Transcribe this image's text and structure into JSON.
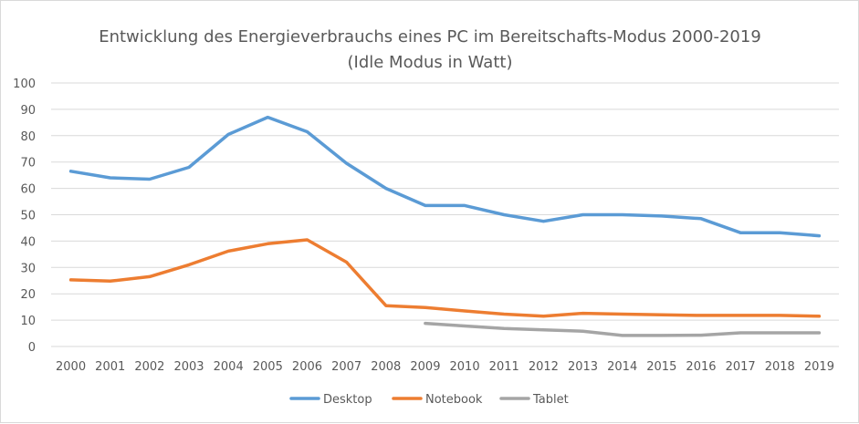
{
  "chart_data": {
    "type": "line",
    "title": "Entwicklung des Energieverbrauchs eines PC im Bereitschafts-Modus 2000-2019",
    "subtitle": "(Idle Modus in Watt)",
    "xlabel": "",
    "ylabel": "",
    "ylim": [
      0,
      100
    ],
    "ytick_step": 10,
    "grid": "horizontal",
    "legend_position": "bottom",
    "categories": [
      "2000",
      "2001",
      "2002",
      "2003",
      "2004",
      "2005",
      "2006",
      "2007",
      "2008",
      "2009",
      "2010",
      "2011",
      "2012",
      "2013",
      "2014",
      "2015",
      "2016",
      "2017",
      "2018",
      "2019"
    ],
    "series": [
      {
        "name": "Desktop",
        "color": "#5b9bd5",
        "values": [
          66.5,
          64,
          63.5,
          68,
          80.5,
          87,
          81.5,
          69.5,
          60,
          53.5,
          53.5,
          50,
          47.5,
          50,
          50,
          49.5,
          48.5,
          43.2,
          43.2,
          42
        ]
      },
      {
        "name": "Notebook",
        "color": "#ed7d31",
        "values": [
          25.3,
          24.8,
          26.5,
          31,
          36.2,
          39,
          40.5,
          32,
          15.5,
          14.8,
          13.5,
          12.3,
          11.5,
          12.6,
          12.3,
          12,
          11.8,
          11.8,
          11.8,
          11.5
        ]
      },
      {
        "name": "Tablet",
        "color": "#a5a5a5",
        "values": [
          null,
          null,
          null,
          null,
          null,
          null,
          null,
          null,
          null,
          8.8,
          7.8,
          6.8,
          6.3,
          5.8,
          4.2,
          4.2,
          4.3,
          5.2,
          5.2,
          5.2
        ]
      }
    ]
  }
}
